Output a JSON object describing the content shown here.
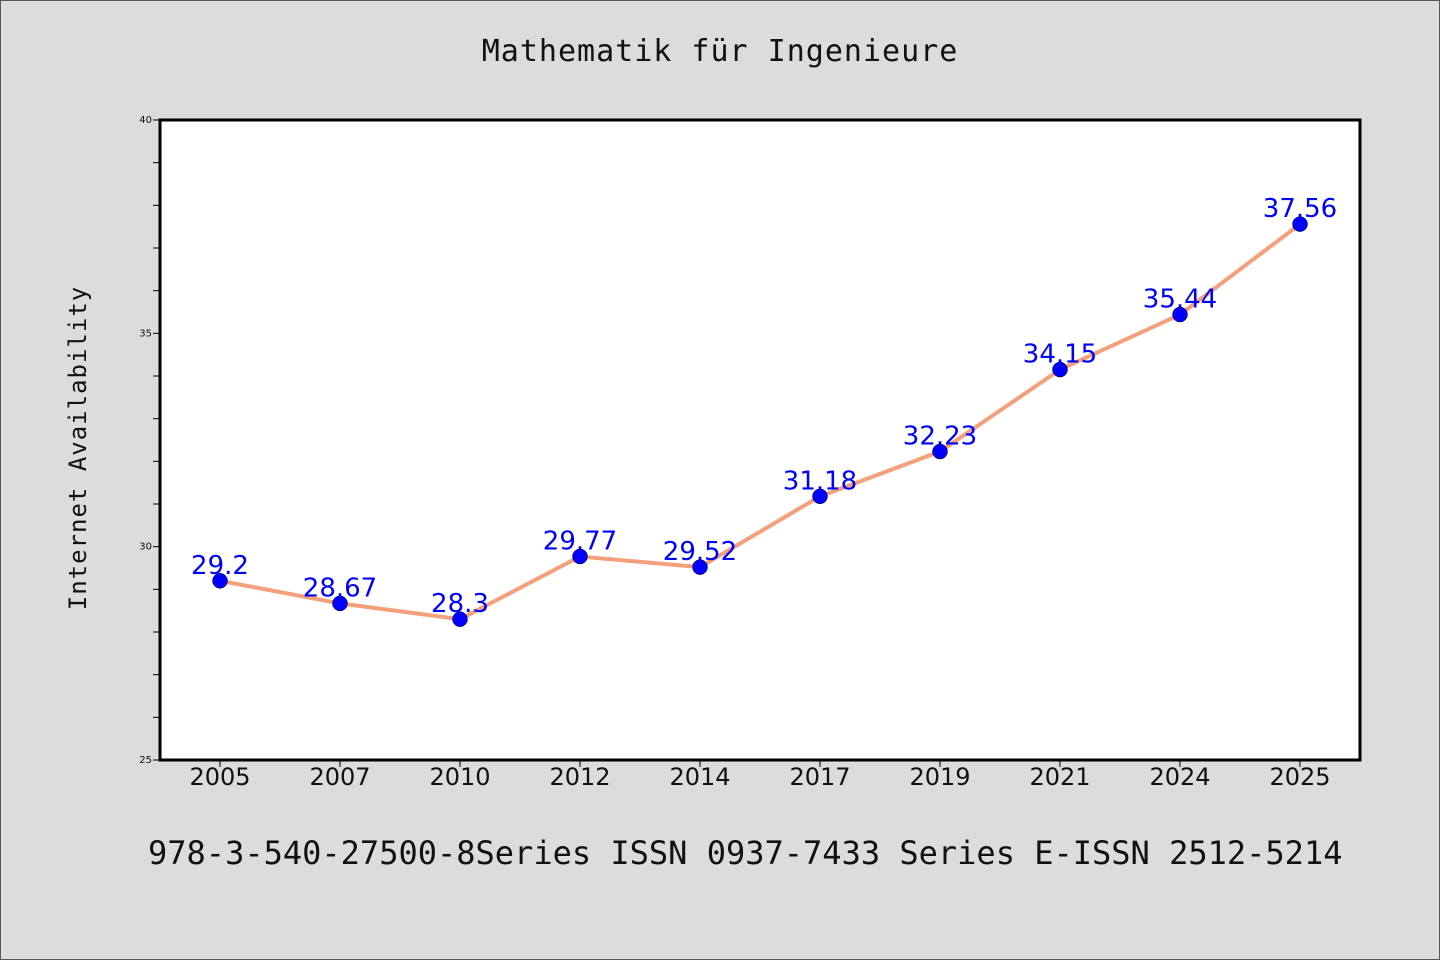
{
  "chart_data": {
    "type": "line",
    "title": "Mathematik für Ingenieure",
    "xlabel": "",
    "ylabel": "Internet Availability",
    "categories": [
      "2005",
      "2007",
      "2010",
      "2012",
      "2014",
      "2017",
      "2019",
      "2021",
      "2024",
      "2025"
    ],
    "series": [
      {
        "values": [
          29.2,
          28.67,
          28.3,
          29.77,
          29.52,
          31.18,
          32.23,
          34.15,
          35.44,
          37.56
        ],
        "labels": [
          "29.2",
          "28.67",
          "28.3",
          "29.77",
          "29.52",
          "31.18",
          "32.23",
          "34.15",
          "35.44",
          "37.56"
        ]
      }
    ],
    "ylim": [
      25,
      40
    ],
    "yticks": [
      "25",
      "30",
      "35",
      "40"
    ],
    "grid": false,
    "line_color": "#f4a07a",
    "marker_color": "#0000ff",
    "label_color": "#0000ff"
  },
  "footer": {
    "text": "978-3-540-27500-8Series ISSN 0937-7433 Series E-ISSN 2512-5214"
  }
}
